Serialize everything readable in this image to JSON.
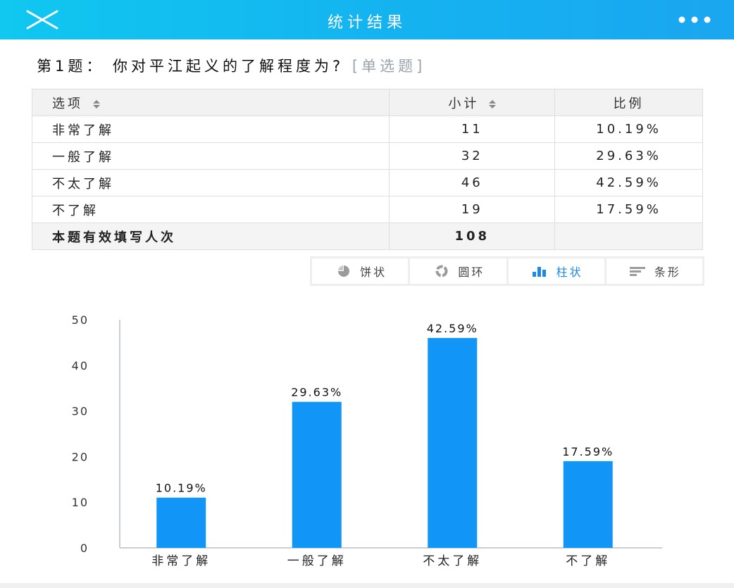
{
  "header": {
    "title": "统计结果",
    "close_icon": "close-icon",
    "more_icon": "more-dots-icon",
    "background": "#14b4f0"
  },
  "question": {
    "text": "第1题： 你对平江起义的了解程度为?",
    "type": "[单选题]"
  },
  "table": {
    "headers": [
      "选项",
      "小计",
      "比例"
    ],
    "rows": [
      {
        "option": "非常了解",
        "count": "11",
        "percent": "10.19%"
      },
      {
        "option": "一般了解",
        "count": "32",
        "percent": "29.63%"
      },
      {
        "option": "不太了解",
        "count": "46",
        "percent": "42.59%"
      },
      {
        "option": "不了解",
        "count": "19",
        "percent": "17.59%"
      }
    ],
    "total_label": "本题有效填写人次",
    "total_value": "108"
  },
  "chart_tabs": [
    {
      "label": "饼状",
      "icon": "pie-chart-icon",
      "active": false
    },
    {
      "label": "圆环",
      "icon": "donut-chart-icon",
      "active": false
    },
    {
      "label": "柱状",
      "icon": "bar-chart-icon",
      "active": true
    },
    {
      "label": "条形",
      "icon": "horizontal-bar-icon",
      "active": false
    }
  ],
  "chart_data": {
    "type": "bar",
    "categories": [
      "非常了解",
      "一般了解",
      "不太了解",
      "不了解"
    ],
    "values": [
      11,
      32,
      46,
      19
    ],
    "data_labels": [
      "10.19%",
      "29.63%",
      "42.59%",
      "17.59%"
    ],
    "ylim": [
      0,
      50
    ],
    "yticks": [
      0,
      10,
      20,
      30,
      40,
      50
    ],
    "grid": false,
    "bar_color": "#1196f7"
  }
}
